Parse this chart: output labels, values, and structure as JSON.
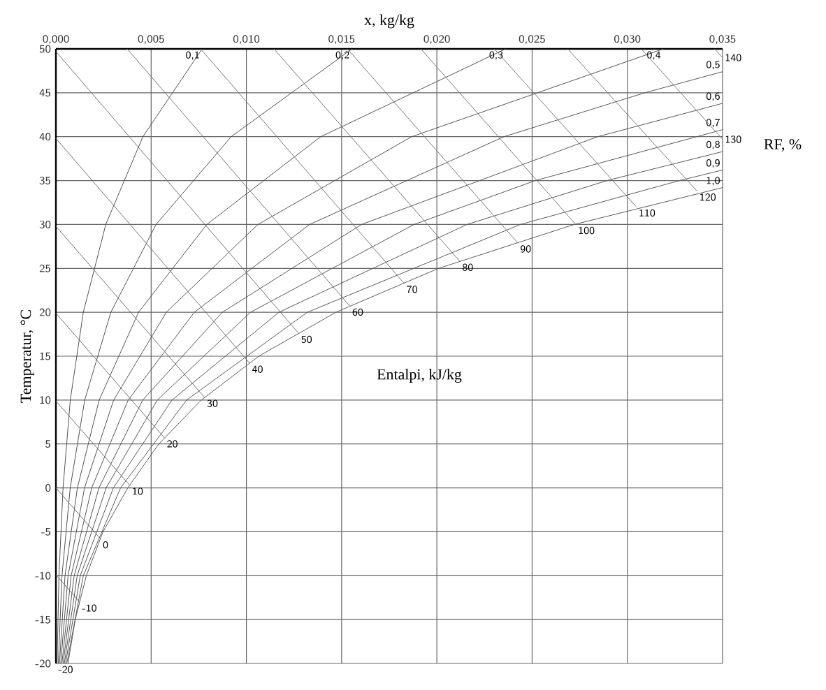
{
  "chart_data": {
    "type": "line",
    "xlabel": "x, kg/kg",
    "ylabel": "Temperatur, °C",
    "annotations": [
      "RF, %",
      "Entalpi, kJ/kg",
      {
        "text": "-20",
        "x": 0,
        "y": -20
      }
    ],
    "xlim": [
      0,
      0.035
    ],
    "ylim": [
      -20,
      50
    ],
    "xticks": [
      {
        "value": 0,
        "label": "0,000"
      },
      {
        "value": 0.005,
        "label": "0,005"
      },
      {
        "value": 0.01,
        "label": "0,010"
      },
      {
        "value": 0.015,
        "label": "0,015"
      },
      {
        "value": 0.02,
        "label": "0,020"
      },
      {
        "value": 0.025,
        "label": "0,025"
      },
      {
        "value": 0.03,
        "label": "0,030"
      },
      {
        "value": 0.035,
        "label": "0,035"
      }
    ],
    "yticks": [
      -20,
      -15,
      -10,
      -5,
      0,
      5,
      10,
      15,
      20,
      25,
      30,
      35,
      40,
      45,
      50
    ],
    "grid": true,
    "line_style": "solid",
    "series": [
      {
        "name": "0,1",
        "color": "#505050",
        "x": [
          6.34e-05,
          0.00016,
          0.000375,
          0.000755,
          0.001439,
          0.002618,
          0.004566,
          0.007676
        ],
        "values": [
          -20,
          -10,
          0,
          10,
          20,
          30,
          40,
          50
        ]
      },
      {
        "name": "0,2",
        "color": "#515151",
        "x": [
          0.000127,
          0.000319,
          0.000751,
          0.001512,
          0.002885,
          0.005258,
          0.0092,
          0.015544
        ],
        "values": [
          -20,
          -10,
          0,
          10,
          20,
          30,
          40,
          50
        ]
      },
      {
        "name": "0,3",
        "color": "#525252",
        "x": [
          0.00019,
          0.000479,
          0.001128,
          0.00227,
          0.004338,
          0.00792,
          0.013903,
          0.023611
        ],
        "values": [
          -20,
          -10,
          0,
          10,
          20,
          30,
          40,
          50
        ]
      },
      {
        "name": "0,4",
        "color": "#535353",
        "x": [
          0.000253,
          0.000639,
          0.001504,
          0.003031,
          0.005797,
          0.010605,
          0.018677,
          0.031885
        ],
        "values": [
          -20,
          -10,
          0,
          10,
          20,
          30,
          40,
          50
        ]
      },
      {
        "name": "0,5",
        "color": "#545454",
        "x": [
          0.000317,
          0.000799,
          0.001882,
          0.003793,
          0.007264,
          0.013314,
          0.023522,
          0.030914,
          0.035
        ],
        "values": [
          -20,
          -10,
          0,
          10,
          20,
          30,
          40,
          45,
          47.4
        ]
      },
      {
        "name": "0,6",
        "color": "#555555",
        "x": [
          0.00038,
          0.000958,
          0.002259,
          0.004557,
          0.008737,
          0.016045,
          0.028442,
          0.035
        ],
        "values": [
          -20,
          -10,
          0,
          10,
          20,
          30,
          40,
          43.8
        ]
      },
      {
        "name": "0,7",
        "color": "#565656",
        "x": [
          0.000444,
          0.001118,
          0.002637,
          0.005323,
          0.010217,
          0.0188,
          0.025166,
          0.035
        ],
        "values": [
          -20,
          -10,
          0,
          10,
          20,
          30,
          35,
          40.8
        ]
      },
      {
        "name": "0,8",
        "color": "#575757",
        "x": [
          0.000507,
          0.001279,
          0.003016,
          0.006091,
          0.011704,
          0.021579,
          0.028927,
          0.035
        ],
        "values": [
          -20,
          -10,
          0,
          10,
          20,
          30,
          35,
          38.3
        ]
      },
      {
        "name": "0,9",
        "color": "#585858",
        "x": [
          0.000571,
          0.001439,
          0.003395,
          0.00686,
          0.013198,
          0.024382,
          0.032733,
          0.035
        ],
        "values": [
          -20,
          -10,
          0,
          10,
          20,
          30,
          35,
          36.2
        ]
      },
      {
        "name": "1,0",
        "color": "#595959",
        "x": [
          0.000634,
          0.001016,
          0.001598,
          0.002474,
          0.003775,
          0.005403,
          0.007632,
          0.01065,
          0.014699,
          0.020086,
          0.02721,
          0.035
        ],
        "values": [
          -20,
          -15,
          -10,
          -5,
          0,
          5,
          10,
          15,
          20,
          25,
          30,
          34.2
        ]
      },
      {
        "name": "-10",
        "color": "#6b6b6b",
        "x": [
          0,
          0.001248
        ],
        "values": [
          -9.9,
          -13.0
        ]
      },
      {
        "name": "0",
        "color": "#6c6c6c",
        "x": [
          0,
          0.002336
        ],
        "values": [
          0,
          -5.8
        ]
      },
      {
        "name": "10",
        "color": "#6d6d6d",
        "x": [
          0,
          0.003874
        ],
        "values": [
          9.9,
          0.3
        ]
      },
      {
        "name": "20",
        "color": "#6e6e6e",
        "x": [
          0,
          0.005697
        ],
        "values": [
          19.9,
          5.7
        ]
      },
      {
        "name": "30",
        "color": "#6f6f6f",
        "x": [
          0,
          0.007801
        ],
        "values": [
          29.8,
          10.3
        ]
      },
      {
        "name": "40",
        "color": "#707070",
        "x": [
          0,
          0.01017
        ],
        "values": [
          39.8,
          14.2
        ]
      },
      {
        "name": "50",
        "color": "#717171",
        "x": [
          0,
          0.012747
        ],
        "values": [
          49.7,
          17.6
        ]
      },
      {
        "name": "60",
        "color": "#727272",
        "x": [
          0.003739,
          0.015432
        ],
        "values": [
          50,
          20.7
        ]
      },
      {
        "name": "70",
        "color": "#737373",
        "x": [
          0.007595,
          0.018281
        ],
        "values": [
          50,
          23.3
        ]
      },
      {
        "name": "80",
        "color": "#747474",
        "x": [
          0.01145,
          0.021204
        ],
        "values": [
          50,
          25.8
        ]
      },
      {
        "name": "90",
        "color": "#757575",
        "x": [
          0.015305,
          0.024246
        ],
        "values": [
          50,
          27.9
        ]
      },
      {
        "name": "100",
        "color": "#767676",
        "x": [
          0.01916,
          0.02729
        ],
        "values": [
          50,
          30.0
        ]
      },
      {
        "name": "110",
        "color": "#777777",
        "x": [
          0.023015,
          0.030474
        ],
        "values": [
          50,
          32.0
        ]
      },
      {
        "name": "120",
        "color": "#787878",
        "x": [
          0.02687,
          0.03366
        ],
        "values": [
          50,
          33.8
        ]
      },
      {
        "name": "130",
        "color": "#797979",
        "x": [
          0.030725,
          0.035
        ],
        "values": [
          50,
          39.7
        ]
      },
      {
        "name": "140",
        "color": "#7a7a7a",
        "x": [
          0.03458,
          0.035
        ],
        "values": [
          50,
          49.0
        ]
      }
    ]
  }
}
